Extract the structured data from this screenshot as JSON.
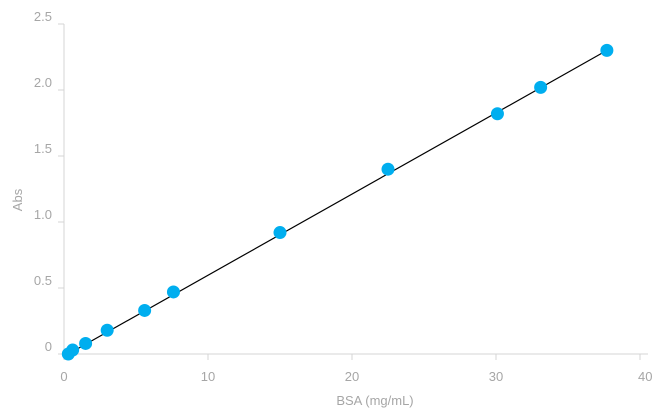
{
  "chart_data": {
    "type": "scatter",
    "title": "",
    "xlabel": "BSA (mg/mL)",
    "ylabel": "Abs",
    "xlim": [
      0,
      40
    ],
    "ylim": [
      0,
      2.5
    ],
    "x_ticks": [
      0,
      10,
      20,
      30,
      40
    ],
    "x_tick_labels": [
      "0",
      "10",
      "20",
      "30",
      "40"
    ],
    "y_ticks": [
      0,
      0.5,
      1.0,
      1.5,
      2.0,
      2.5
    ],
    "y_tick_labels": [
      "0",
      "0.5",
      "1.0",
      "1.5",
      "2.0",
      "2.5"
    ],
    "grid": false,
    "legend": "none",
    "series": [
      {
        "x": [
          0.3,
          0.6,
          1.5,
          3.0,
          5.6,
          7.6,
          15.0,
          22.5,
          30.1,
          33.1,
          37.7
        ],
        "y": [
          0.0,
          0.03,
          0.08,
          0.18,
          0.33,
          0.47,
          0.92,
          1.4,
          1.82,
          2.02,
          2.3
        ],
        "color": "#00aeef"
      }
    ],
    "trendline": {
      "x": [
        0.3,
        37.7
      ],
      "y": [
        0.0,
        2.3
      ],
      "color": "#000000"
    }
  }
}
